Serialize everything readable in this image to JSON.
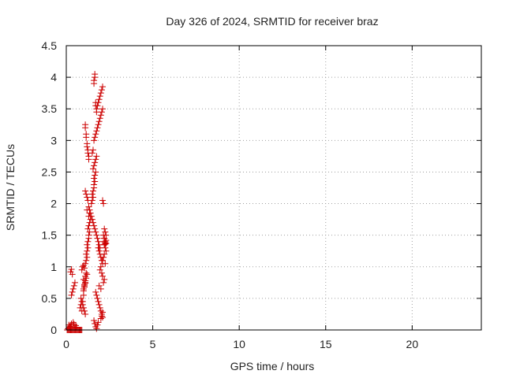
{
  "chart_data": {
    "type": "scatter",
    "title": "Day 326 of 2024, SRMTID for receiver braz",
    "xlabel": "GPS time / hours",
    "ylabel": "SRMTID / TECUs",
    "xlim": [
      0,
      24
    ],
    "ylim": [
      0,
      4.5
    ],
    "xticks": [
      0,
      5,
      10,
      15,
      20
    ],
    "yticks": [
      0,
      0.5,
      1,
      1.5,
      2,
      2.5,
      3,
      3.5,
      4,
      4.5
    ],
    "xtick_labels": [
      "0",
      "5",
      "10",
      "15",
      "20"
    ],
    "ytick_labels": [
      "0",
      "0.5",
      "1",
      "1.5",
      "2",
      "2.5",
      "3",
      "3.5",
      "4",
      "4.5"
    ],
    "grid": true,
    "marker": "plus",
    "color": "#cc0000",
    "series": [
      {
        "name": "SRMTID",
        "x": [
          0.05,
          0.1,
          0.15,
          0.2,
          0.25,
          0.3,
          0.35,
          0.4,
          0.45,
          0.5,
          0.55,
          0.6,
          0.65,
          0.7,
          0.75,
          0.8,
          0.85,
          0.9,
          0.1,
          0.2,
          0.15,
          0.3,
          0.5,
          0.55,
          0.4,
          0.6,
          0.25,
          0.45,
          0.8,
          0.85,
          0.9,
          0.95,
          1.0,
          1.0,
          1.05,
          1.1,
          1.0,
          1.1,
          1.15,
          1.05,
          1.1,
          1.15,
          1.2,
          1.0,
          1.05,
          1.1,
          1.1,
          1.15,
          1.2,
          1.15,
          1.2,
          1.25,
          1.2,
          1.25,
          1.3,
          1.3,
          1.35,
          1.25,
          1.3,
          1.35,
          1.4,
          1.3,
          1.35,
          1.2,
          1.45,
          1.5,
          1.55,
          1.5,
          1.55,
          1.6,
          1.6,
          1.65,
          1.6,
          1.65,
          1.7,
          1.55,
          1.6,
          1.65,
          1.7,
          1.75,
          1.5,
          1.55,
          1.6,
          1.65,
          1.7,
          1.75,
          1.8,
          1.85,
          1.9,
          1.95,
          2.0,
          2.05,
          2.1,
          1.8,
          1.85,
          1.9,
          1.95,
          2.0,
          2.05,
          2.1,
          2.15,
          2.2,
          2.25,
          2.2,
          2.25,
          2.3,
          2.2,
          2.15,
          2.1,
          2.25,
          2.0,
          1.95,
          2.05,
          2.1,
          2.2,
          2.15,
          1.9,
          2.0,
          1.1,
          1.15,
          1.2,
          1.25,
          1.3,
          1.35,
          1.4,
          1.45,
          1.5,
          1.55,
          1.6,
          1.65,
          1.7,
          1.75,
          1.8,
          1.85,
          1.9,
          1.95,
          1.1,
          1.1,
          1.15,
          1.15,
          1.2,
          1.2,
          1.25,
          1.25,
          1.3,
          1.3,
          1.6,
          1.6,
          1.65,
          1.65,
          1.7,
          1.7,
          1.75,
          1.75,
          1.7,
          1.75,
          1.8,
          1.85,
          1.9,
          1.95,
          2.0,
          2.05,
          2.1,
          1.6,
          1.65,
          1.7,
          1.75,
          1.8,
          1.85,
          2.0,
          2.05,
          2.1,
          0.3,
          0.35,
          0.4,
          0.45,
          0.5,
          0.9,
          0.95,
          1.0,
          1.05,
          0.85,
          0.9,
          0.95,
          1.0,
          1.05,
          1.1,
          0.25,
          0.3,
          0.35,
          2.2,
          2.25,
          2.3,
          2.2,
          2.25,
          2.3,
          2.1,
          2.15,
          2.2,
          2.25,
          2.3,
          2.2,
          1.85,
          1.9,
          1.95,
          2.0,
          2.05,
          2.1
        ],
        "y": [
          0,
          0,
          0,
          0,
          0,
          0,
          0,
          0,
          0,
          0,
          0,
          0,
          0,
          0,
          0,
          0,
          0,
          0,
          0.02,
          0.05,
          0.08,
          0.1,
          0.03,
          0.07,
          0.12,
          0.04,
          0.06,
          0.09,
          0.35,
          0.4,
          0.3,
          0.45,
          0.55,
          0.65,
          0.7,
          0.75,
          0.8,
          0.85,
          0.9,
          0.72,
          0.78,
          0.82,
          0.88,
          0.62,
          0.68,
          0.74,
          1.05,
          1.1,
          1.15,
          1.2,
          1.25,
          1.3,
          1.35,
          1.4,
          1.45,
          1.5,
          1.55,
          1.6,
          1.65,
          1.7,
          1.75,
          1.8,
          1.85,
          1.9,
          2.0,
          2.05,
          2.1,
          2.15,
          2.2,
          2.25,
          2.3,
          2.35,
          2.4,
          2.45,
          2.5,
          2.55,
          2.6,
          2.65,
          2.7,
          2.75,
          2.8,
          2.85,
          3.0,
          3.05,
          3.1,
          3.15,
          3.2,
          3.25,
          3.3,
          3.35,
          3.4,
          3.45,
          3.5,
          3.55,
          3.6,
          3.65,
          3.7,
          3.75,
          3.8,
          3.85,
          1.5,
          1.45,
          1.4,
          1.35,
          1.3,
          1.25,
          1.2,
          1.15,
          1.1,
          1.05,
          1.0,
          0.95,
          0.9,
          0.85,
          0.8,
          0.75,
          0.7,
          0.65,
          2.2,
          2.15,
          2.1,
          2.05,
          1.95,
          1.9,
          1.85,
          1.8,
          1.75,
          1.7,
          1.65,
          1.6,
          1.55,
          1.5,
          1.45,
          1.4,
          1.35,
          1.3,
          3.2,
          3.25,
          3.1,
          3.05,
          2.95,
          2.9,
          2.85,
          2.8,
          2.75,
          2.7,
          3.9,
          3.95,
          4.0,
          4.05,
          3.55,
          3.6,
          3.5,
          3.45,
          0.6,
          0.55,
          0.5,
          0.45,
          0.4,
          0.35,
          0.3,
          0.25,
          0.2,
          0.15,
          0.1,
          0.05,
          0.02,
          0.08,
          0.12,
          0.18,
          0.22,
          0.28,
          0.55,
          0.6,
          0.65,
          0.7,
          0.75,
          0.95,
          1.0,
          1.02,
          0.98,
          0.5,
          0.45,
          0.4,
          0.35,
          0.3,
          0.25,
          0.92,
          0.96,
          0.88,
          1.4,
          1.38,
          1.42,
          1.35,
          1.36,
          1.37,
          2.05,
          2.0,
          1.6,
          1.55,
          1.5,
          1.45,
          1.3,
          1.25,
          1.2,
          1.15,
          1.1,
          1.05
        ]
      }
    ]
  }
}
